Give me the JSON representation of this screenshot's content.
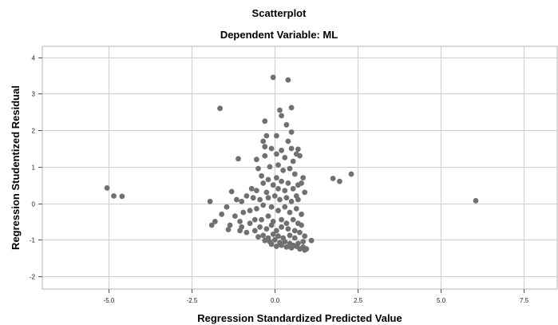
{
  "chart_data": {
    "type": "scatter",
    "title": "Scatterplot",
    "subtitle": "Dependent Variable: ML",
    "xlabel": "Regression Standardized Predicted Value",
    "ylabel": "Regression Studentized Residual",
    "xlim": [
      -7.0,
      8.5
    ],
    "ylim": [
      -2.35,
      4.3
    ],
    "x_ticks": [
      -5.0,
      -2.5,
      0.0,
      2.5,
      5.0,
      7.5
    ],
    "x_tick_labels": [
      "-5.0",
      "-2.5",
      "0.0",
      "2.5",
      "5.0",
      "7.5"
    ],
    "y_ticks": [
      -2,
      -1,
      0,
      1,
      2,
      3,
      4
    ],
    "y_tick_labels": [
      "-2",
      "-1",
      "0",
      "1",
      "2",
      "3",
      "4"
    ],
    "grid": true,
    "point_color": "#707070",
    "points": [
      [
        -5.05,
        0.42
      ],
      [
        -4.85,
        0.2
      ],
      [
        -4.6,
        0.19
      ],
      [
        -1.65,
        2.6
      ],
      [
        -0.05,
        3.45
      ],
      [
        0.4,
        3.38
      ],
      [
        -0.3,
        2.25
      ],
      [
        0.15,
        2.55
      ],
      [
        0.2,
        2.4
      ],
      [
        0.5,
        2.62
      ],
      [
        0.35,
        2.15
      ],
      [
        0.5,
        1.95
      ],
      [
        -0.35,
        1.7
      ],
      [
        -0.25,
        1.85
      ],
      [
        0.05,
        1.85
      ],
      [
        -0.3,
        1.55
      ],
      [
        -0.1,
        1.5
      ],
      [
        0.2,
        1.45
      ],
      [
        0.7,
        1.48
      ],
      [
        0.65,
        1.35
      ],
      [
        0.75,
        1.3
      ],
      [
        0.5,
        1.5
      ],
      [
        0.4,
        1.7
      ],
      [
        -1.1,
        1.22
      ],
      [
        -0.55,
        1.2
      ],
      [
        -0.3,
        1.3
      ],
      [
        0.05,
        1.35
      ],
      [
        0.3,
        1.25
      ],
      [
        0.55,
        1.15
      ],
      [
        -0.5,
        0.95
      ],
      [
        -0.15,
        1.0
      ],
      [
        0.1,
        1.05
      ],
      [
        0.25,
        0.9
      ],
      [
        0.45,
        0.95
      ],
      [
        0.6,
        0.8
      ],
      [
        0.85,
        0.7
      ],
      [
        -0.4,
        0.75
      ],
      [
        -0.2,
        0.65
      ],
      [
        0.05,
        0.7
      ],
      [
        0.2,
        0.6
      ],
      [
        0.4,
        0.55
      ],
      [
        0.7,
        0.5
      ],
      [
        0.8,
        0.55
      ],
      [
        0.55,
        0.4
      ],
      [
        0.3,
        0.35
      ],
      [
        0.1,
        0.4
      ],
      [
        -0.05,
        0.5
      ],
      [
        -0.35,
        0.55
      ],
      [
        -0.55,
        0.35
      ],
      [
        -0.7,
        0.4
      ],
      [
        -0.25,
        0.3
      ],
      [
        0.9,
        0.3
      ],
      [
        0.65,
        0.2
      ],
      [
        -1.3,
        0.32
      ],
      [
        -1.15,
        0.1
      ],
      [
        -1.0,
        0.05
      ],
      [
        -0.85,
        0.2
      ],
      [
        -0.65,
        0.15
      ],
      [
        -0.45,
        0.1
      ],
      [
        -0.2,
        0.15
      ],
      [
        0.0,
        0.2
      ],
      [
        0.15,
        0.1
      ],
      [
        0.35,
        0.15
      ],
      [
        0.5,
        0.05
      ],
      [
        0.7,
        0.1
      ],
      [
        -1.95,
        0.05
      ],
      [
        -1.6,
        -0.3
      ],
      [
        -1.45,
        -0.1
      ],
      [
        -1.2,
        -0.35
      ],
      [
        -0.95,
        -0.25
      ],
      [
        -0.75,
        -0.2
      ],
      [
        -0.55,
        -0.15
      ],
      [
        -0.35,
        -0.05
      ],
      [
        -0.1,
        -0.1
      ],
      [
        0.1,
        -0.2
      ],
      [
        0.3,
        -0.1
      ],
      [
        0.45,
        -0.25
      ],
      [
        0.65,
        -0.15
      ],
      [
        0.8,
        -0.3
      ],
      [
        -1.8,
        -0.5
      ],
      [
        -1.9,
        -0.6
      ],
      [
        -1.35,
        -0.6
      ],
      [
        -1.4,
        -0.72
      ],
      [
        -1.05,
        -0.5
      ],
      [
        -1.0,
        -0.65
      ],
      [
        -1.05,
        -0.75
      ],
      [
        -0.75,
        -0.55
      ],
      [
        -0.6,
        -0.45
      ],
      [
        -0.4,
        -0.45
      ],
      [
        -0.2,
        -0.35
      ],
      [
        -0.05,
        -0.5
      ],
      [
        0.2,
        -0.45
      ],
      [
        0.35,
        -0.55
      ],
      [
        0.55,
        -0.45
      ],
      [
        0.7,
        -0.55
      ],
      [
        0.8,
        -0.6
      ],
      [
        -0.85,
        -0.8
      ],
      [
        -0.6,
        -0.75
      ],
      [
        -0.45,
        -0.65
      ],
      [
        -0.25,
        -0.7
      ],
      [
        -0.1,
        -0.6
      ],
      [
        0.05,
        -0.75
      ],
      [
        0.2,
        -0.65
      ],
      [
        0.4,
        -0.7
      ],
      [
        0.6,
        -0.75
      ],
      [
        0.75,
        -0.8
      ],
      [
        0.9,
        -0.9
      ],
      [
        -0.5,
        -0.92
      ],
      [
        -0.35,
        -0.88
      ],
      [
        -0.2,
        -0.95
      ],
      [
        -0.05,
        -0.85
      ],
      [
        0.1,
        -0.9
      ],
      [
        0.25,
        -0.95
      ],
      [
        0.45,
        -0.88
      ],
      [
        0.6,
        -0.95
      ],
      [
        0.85,
        -1.05
      ],
      [
        1.1,
        -1.02
      ],
      [
        -0.3,
        -1.02
      ],
      [
        -0.15,
        -1.05
      ],
      [
        0.0,
        -1.0
      ],
      [
        0.15,
        -1.08
      ],
      [
        0.3,
        -1.05
      ],
      [
        0.45,
        -1.1
      ],
      [
        0.55,
        -1.15
      ],
      [
        0.7,
        -1.1
      ],
      [
        0.85,
        -1.2
      ],
      [
        0.95,
        -1.25
      ],
      [
        -0.1,
        -1.12
      ],
      [
        0.05,
        -1.18
      ],
      [
        0.2,
        -1.15
      ],
      [
        0.35,
        -1.2
      ],
      [
        0.5,
        -1.22
      ],
      [
        0.65,
        -1.18
      ],
      [
        0.75,
        -1.25
      ],
      [
        0.9,
        -1.28
      ],
      [
        1.75,
        0.68
      ],
      [
        1.95,
        0.6
      ],
      [
        2.3,
        0.8
      ],
      [
        6.05,
        0.07
      ]
    ]
  }
}
